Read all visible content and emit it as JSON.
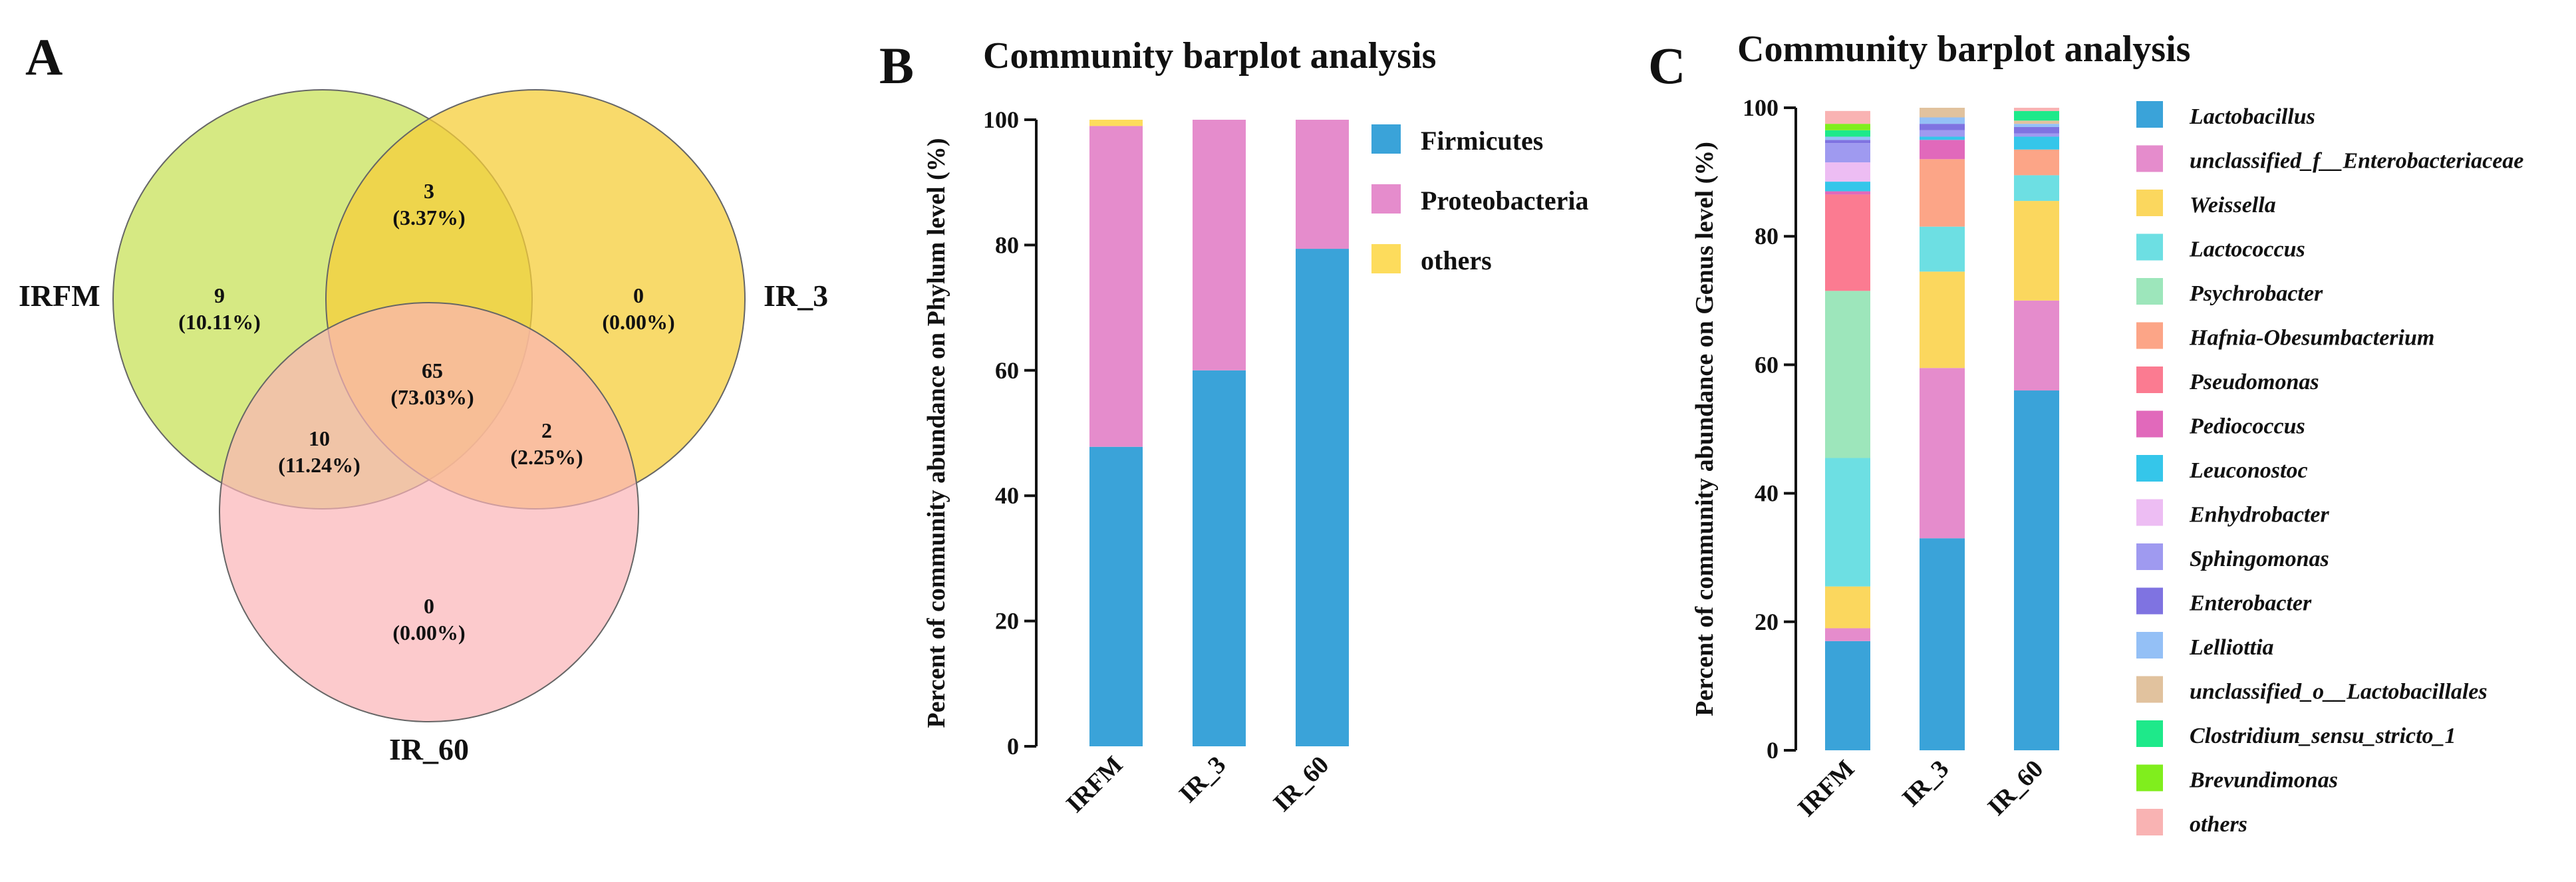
{
  "panels": {
    "a": "A",
    "b": "B",
    "c": "C"
  },
  "venn": {
    "sets": [
      "IRFM",
      "IR_3",
      "IR_60"
    ],
    "regions": [
      {
        "sets": [
          "IRFM"
        ],
        "count": "9",
        "percent": "(10.11%)"
      },
      {
        "sets": [
          "IR_3"
        ],
        "count": "0",
        "percent": "(0.00%)"
      },
      {
        "sets": [
          "IR_60"
        ],
        "count": "0",
        "percent": "(0.00%)"
      },
      {
        "sets": [
          "IRFM",
          "IR_3"
        ],
        "count": "3",
        "percent": "(3.37%)"
      },
      {
        "sets": [
          "IRFM",
          "IR_60"
        ],
        "count": "10",
        "percent": "(11.24%)"
      },
      {
        "sets": [
          "IR_3",
          "IR_60"
        ],
        "count": "2",
        "percent": "(2.25%)"
      },
      {
        "sets": [
          "IRFM",
          "IR_3",
          "IR_60"
        ],
        "count": "65",
        "percent": "(73.03%)"
      }
    ],
    "colors": [
      "#c8e25a",
      "#f6cd3a",
      "#fbb4b6"
    ]
  },
  "chart_data": [
    {
      "type": "bar",
      "stacked": true,
      "title": "Community barplot analysis",
      "xlabel": "",
      "ylabel": "Percent of community abundance on Phylum level (%)",
      "ylim": [
        0,
        100
      ],
      "yticks": [
        0,
        20,
        40,
        60,
        80,
        100
      ],
      "categories": [
        "IRFM",
        "IR_3",
        "IR_60"
      ],
      "series": [
        {
          "name": "Firmicutes",
          "color": "#3aa3d9",
          "values": [
            47.8,
            60.0,
            79.4
          ]
        },
        {
          "name": "Proteobacteria",
          "color": "#e58ccc",
          "values": [
            51.2,
            40.0,
            20.6
          ]
        },
        {
          "name": "others",
          "color": "#fddc5c",
          "values": [
            1.0,
            0.0,
            0.0
          ]
        }
      ]
    },
    {
      "type": "bar",
      "stacked": true,
      "title": "Community barplot analysis",
      "xlabel": "",
      "ylabel": "Percent of community abundance on Genus level (%)",
      "ylim": [
        0,
        100
      ],
      "yticks": [
        0,
        20,
        40,
        60,
        80,
        100
      ],
      "categories": [
        "IRFM",
        "IR_3",
        "IR_60"
      ],
      "series": [
        {
          "name": "Lactobacillus",
          "color": "#3aa3d9",
          "values": [
            17.0,
            33.0,
            56.0
          ]
        },
        {
          "name": "unclassified_f__Enterobacteriaceae",
          "color": "#e58ccc",
          "values": [
            2.0,
            26.5,
            14.0
          ]
        },
        {
          "name": "Weissella",
          "color": "#fbd75e",
          "values": [
            6.5,
            15.0,
            15.5
          ]
        },
        {
          "name": "Lactococcus",
          "color": "#6ddfe3",
          "values": [
            20.0,
            7.0,
            4.0
          ]
        },
        {
          "name": "Psychrobacter",
          "color": "#9de6bb",
          "values": [
            26.0,
            0.0,
            0.0
          ]
        },
        {
          "name": "Hafnia-Obesumbacterium",
          "color": "#fca587",
          "values": [
            0.0,
            10.5,
            4.0
          ]
        },
        {
          "name": "Pseudomonas",
          "color": "#fb7b91",
          "values": [
            15.0,
            0.0,
            0.0
          ]
        },
        {
          "name": "Pediococcus",
          "color": "#e169bb",
          "values": [
            0.5,
            3.0,
            0.0
          ]
        },
        {
          "name": "Leuconostoc",
          "color": "#35c6ea",
          "values": [
            1.5,
            0.5,
            2.0
          ]
        },
        {
          "name": "Enhydrobacter",
          "color": "#edbdf3",
          "values": [
            3.0,
            0.0,
            0.0
          ]
        },
        {
          "name": "Sphingomonas",
          "color": "#9f9af0",
          "values": [
            3.0,
            1.0,
            0.5
          ]
        },
        {
          "name": "Enterobacter",
          "color": "#7f73e1",
          "values": [
            0.5,
            1.0,
            1.0
          ]
        },
        {
          "name": "Lelliottia",
          "color": "#94c0f6",
          "values": [
            0.5,
            1.0,
            0.5
          ]
        },
        {
          "name": "unclassified_o__Lactobacillales",
          "color": "#e1c29e",
          "values": [
            0.0,
            1.5,
            0.5
          ]
        },
        {
          "name": "Clostridium_sensu_stricto_1",
          "color": "#1ee98a",
          "values": [
            1.0,
            0.0,
            1.5
          ]
        },
        {
          "name": "Brevundimonas",
          "color": "#80ee1d",
          "values": [
            1.0,
            0.0,
            0.0
          ]
        },
        {
          "name": "others",
          "color": "#f9b3b3",
          "values": [
            2.0,
            0.0,
            0.5
          ]
        }
      ]
    }
  ]
}
